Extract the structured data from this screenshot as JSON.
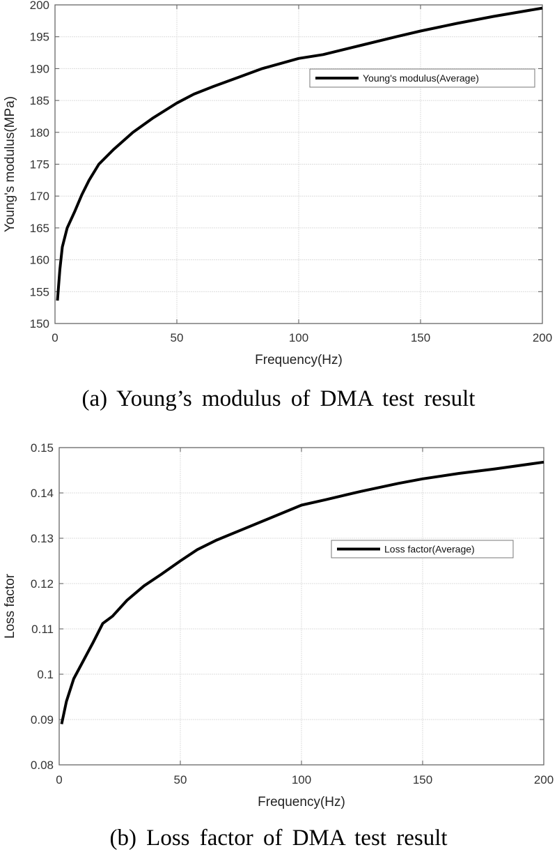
{
  "chart_data": [
    {
      "type": "line",
      "xlabel": "Frequency(Hz)",
      "ylabel": "Young's modulus(MPa)",
      "xlim": [
        0,
        200
      ],
      "ylim": [
        150,
        200
      ],
      "xticks": [
        "0",
        "50",
        "100",
        "150",
        "200"
      ],
      "yticks": [
        "150",
        "155",
        "160",
        "165",
        "170",
        "175",
        "180",
        "185",
        "190",
        "195",
        "200"
      ],
      "grid": true,
      "legend_position": "upper-right",
      "caption": "(a) Young’s modulus of DMA test result",
      "series": [
        {
          "name": "Young's modulus(Average)",
          "color": "#000000",
          "x": [
            1,
            2,
            3,
            5,
            8,
            11,
            14,
            18,
            24,
            32,
            40,
            50,
            57,
            65,
            75,
            85,
            100,
            110,
            125,
            140,
            150,
            165,
            180,
            200
          ],
          "y": [
            153.6,
            158.5,
            162,
            165,
            167.5,
            170.2,
            172.5,
            175,
            177.3,
            180,
            182.2,
            184.6,
            186,
            187.2,
            188.6,
            190,
            191.6,
            192.2,
            193.6,
            195,
            195.9,
            197.1,
            198.2,
            199.5
          ]
        }
      ]
    },
    {
      "type": "line",
      "xlabel": "Frequency(Hz)",
      "ylabel": "Loss factor",
      "xlim": [
        0,
        200
      ],
      "ylim": [
        0.08,
        0.15
      ],
      "xticks": [
        "0",
        "50",
        "100",
        "150",
        "200"
      ],
      "yticks": [
        "0.08",
        "0.09",
        "0.1",
        "0.11",
        "0.12",
        "0.13",
        "0.14",
        "0.15"
      ],
      "grid": true,
      "legend_position": "center-right",
      "caption": "(b) Loss factor of DMA test result",
      "series": [
        {
          "name": "Loss factor(Average)",
          "color": "#000000",
          "x": [
            1,
            3,
            6,
            10,
            14,
            18,
            22,
            28,
            35,
            42,
            50,
            57,
            65,
            75,
            85,
            100,
            110,
            125,
            140,
            150,
            165,
            180,
            200
          ],
          "y": [
            0.089,
            0.094,
            0.099,
            0.103,
            0.107,
            0.1112,
            0.1128,
            0.1163,
            0.1195,
            0.122,
            0.125,
            0.1275,
            0.1296,
            0.1318,
            0.134,
            0.1373,
            0.1385,
            0.1404,
            0.1421,
            0.1431,
            0.1443,
            0.1453,
            0.1468
          ]
        }
      ]
    }
  ]
}
